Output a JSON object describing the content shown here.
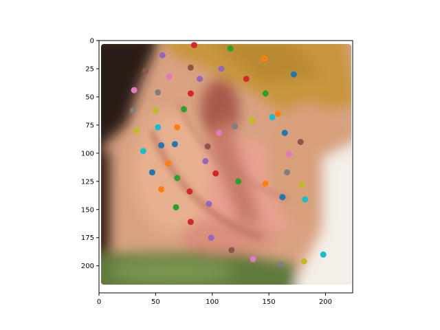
{
  "chart_data": {
    "type": "scatter",
    "title": "",
    "xlabel": "",
    "ylabel": "",
    "background": "blurred photograph of skin with a dark upper-left corner, a pink/orange central area, a yellow upper band and a green lower strip",
    "xlim": [
      0,
      224
    ],
    "ylim": [
      224,
      0
    ],
    "y_axis_inverted": true,
    "x_ticks": [
      0,
      50,
      100,
      150,
      200
    ],
    "y_ticks": [
      0,
      25,
      50,
      75,
      100,
      125,
      150,
      175,
      200
    ],
    "grid": false,
    "legend": "none",
    "marker": "circle",
    "points": [
      {
        "x": 84,
        "y": 4,
        "color": "#d62728"
      },
      {
        "x": 116,
        "y": 7,
        "color": "#2ca02c"
      },
      {
        "x": 56,
        "y": 13,
        "color": "#9467bd"
      },
      {
        "x": 146,
        "y": 16,
        "color": "#ff7f0e"
      },
      {
        "x": 81,
        "y": 24,
        "color": "#8c564b"
      },
      {
        "x": 108,
        "y": 25,
        "color": "#9467bd"
      },
      {
        "x": 41,
        "y": 27,
        "color": "#8c564b"
      },
      {
        "x": 172,
        "y": 30,
        "color": "#1f77b4"
      },
      {
        "x": 62,
        "y": 32,
        "color": "#e377c2"
      },
      {
        "x": 89,
        "y": 34,
        "color": "#9467bd"
      },
      {
        "x": 130,
        "y": 34,
        "color": "#d62728"
      },
      {
        "x": 31,
        "y": 44,
        "color": "#e377c2"
      },
      {
        "x": 52,
        "y": 46,
        "color": "#7f7f7f"
      },
      {
        "x": 81,
        "y": 47,
        "color": "#d62728"
      },
      {
        "x": 147,
        "y": 47,
        "color": "#2ca02c"
      },
      {
        "x": 30,
        "y": 62,
        "color": "#7f7f7f"
      },
      {
        "x": 50,
        "y": 62,
        "color": "#bcbd22"
      },
      {
        "x": 75,
        "y": 61,
        "color": "#2ca02c"
      },
      {
        "x": 158,
        "y": 65,
        "color": "#ff7f0e"
      },
      {
        "x": 153,
        "y": 68,
        "color": "#17becf"
      },
      {
        "x": 135,
        "y": 71,
        "color": "#bcbd22"
      },
      {
        "x": 120,
        "y": 76,
        "color": "#7f7f7f"
      },
      {
        "x": 52,
        "y": 77,
        "color": "#17becf"
      },
      {
        "x": 69,
        "y": 77,
        "color": "#ff7f0e"
      },
      {
        "x": 33,
        "y": 80,
        "color": "#bcbd22"
      },
      {
        "x": 106,
        "y": 82,
        "color": "#e377c2"
      },
      {
        "x": 164,
        "y": 82,
        "color": "#1f77b4"
      },
      {
        "x": 178,
        "y": 90,
        "color": "#8c564b"
      },
      {
        "x": 55,
        "y": 93,
        "color": "#1f77b4"
      },
      {
        "x": 67,
        "y": 92,
        "color": "#1f77b4"
      },
      {
        "x": 96,
        "y": 94,
        "color": "#8c564b"
      },
      {
        "x": 39,
        "y": 98,
        "color": "#17becf"
      },
      {
        "x": 168,
        "y": 101,
        "color": "#e377c2"
      },
      {
        "x": 61,
        "y": 109,
        "color": "#ff7f0e"
      },
      {
        "x": 94,
        "y": 107,
        "color": "#9467bd"
      },
      {
        "x": 47,
        "y": 117,
        "color": "#1f77b4"
      },
      {
        "x": 103,
        "y": 118,
        "color": "#d62728"
      },
      {
        "x": 166,
        "y": 117,
        "color": "#7f7f7f"
      },
      {
        "x": 69,
        "y": 122,
        "color": "#2ca02c"
      },
      {
        "x": 123,
        "y": 125,
        "color": "#2ca02c"
      },
      {
        "x": 147,
        "y": 127,
        "color": "#ff7f0e"
      },
      {
        "x": 179,
        "y": 128,
        "color": "#bcbd22"
      },
      {
        "x": 55,
        "y": 132,
        "color": "#ff7f0e"
      },
      {
        "x": 80,
        "y": 134,
        "color": "#d62728"
      },
      {
        "x": 162,
        "y": 139,
        "color": "#1f77b4"
      },
      {
        "x": 182,
        "y": 141,
        "color": "#17becf"
      },
      {
        "x": 97,
        "y": 145,
        "color": "#9467bd"
      },
      {
        "x": 68,
        "y": 148,
        "color": "#2ca02c"
      },
      {
        "x": 81,
        "y": 161,
        "color": "#d62728"
      },
      {
        "x": 99,
        "y": 175,
        "color": "#9467bd"
      },
      {
        "x": 117,
        "y": 186,
        "color": "#8c564b"
      },
      {
        "x": 198,
        "y": 190,
        "color": "#17becf"
      },
      {
        "x": 136,
        "y": 194,
        "color": "#e377c2"
      },
      {
        "x": 181,
        "y": 196,
        "color": "#bcbd22"
      },
      {
        "x": 161,
        "y": 199,
        "color": "#7f7f7f"
      }
    ]
  }
}
